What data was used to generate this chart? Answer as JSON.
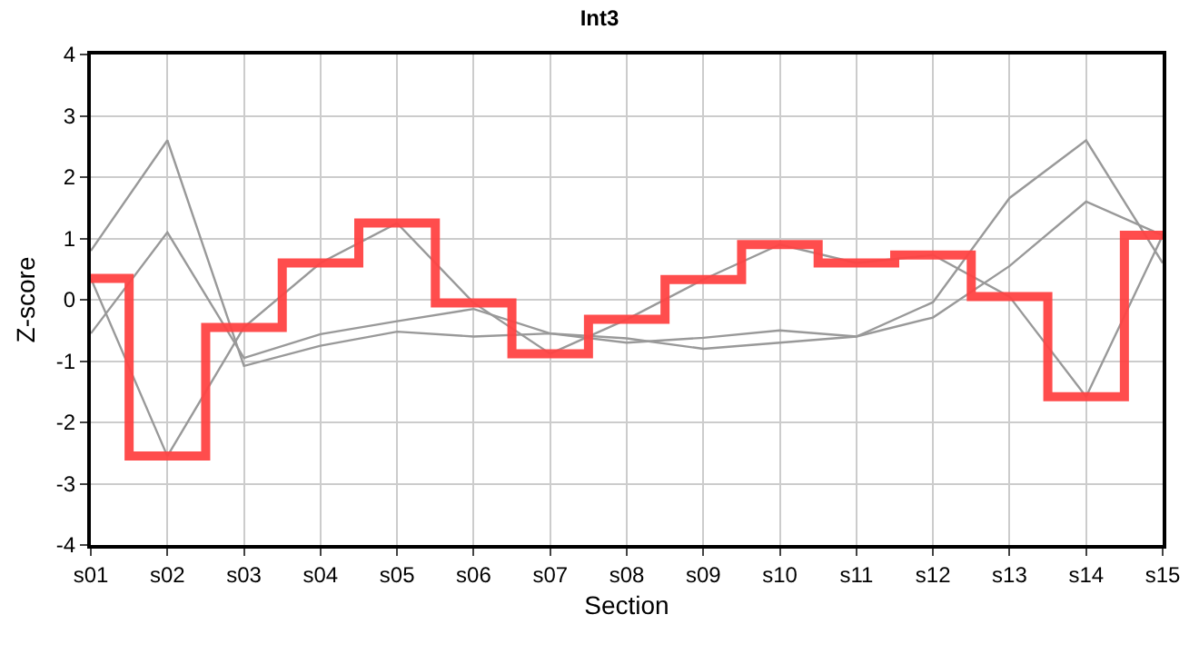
{
  "chart_data": {
    "type": "line",
    "title": "Int3",
    "xlabel": "Section",
    "ylabel": "Z-score",
    "categories": [
      "s01",
      "s02",
      "s03",
      "s04",
      "s05",
      "s06",
      "s07",
      "s08",
      "s09",
      "s10",
      "s11",
      "s12",
      "s13",
      "s14",
      "s15"
    ],
    "series": [
      {
        "color": "#999999",
        "values": [
          0.8,
          2.6,
          -1.08,
          -0.75,
          -0.52,
          -0.6,
          -0.55,
          -0.7,
          -0.62,
          -0.5,
          -0.6,
          -0.04,
          1.66,
          2.6,
          0.6
        ]
      },
      {
        "color": "#999999",
        "values": [
          -0.55,
          1.1,
          -0.95,
          -0.56,
          -0.35,
          -0.15,
          -0.55,
          -0.63,
          -0.8,
          -0.7,
          -0.6,
          -0.29,
          0.55,
          1.6,
          1.05
        ]
      },
      {
        "color": "#999999",
        "values": [
          0.35,
          -2.55,
          -0.45,
          0.6,
          1.25,
          -0.05,
          -0.88,
          -0.32,
          0.33,
          0.9,
          0.6,
          0.73,
          0.05,
          -1.58,
          1.05
        ]
      },
      {
        "type": "step",
        "color": "#ff4444",
        "values": [
          0.35,
          -2.55,
          -0.45,
          0.6,
          1.25,
          -0.05,
          -0.88,
          -0.32,
          0.33,
          0.9,
          0.6,
          0.73,
          0.05,
          -1.58,
          1.05
        ]
      }
    ],
    "ylim": [
      -4,
      4
    ],
    "yticks": [
      -4,
      -3,
      -2,
      -1,
      0,
      1,
      2,
      3,
      4
    ],
    "grid": true
  }
}
